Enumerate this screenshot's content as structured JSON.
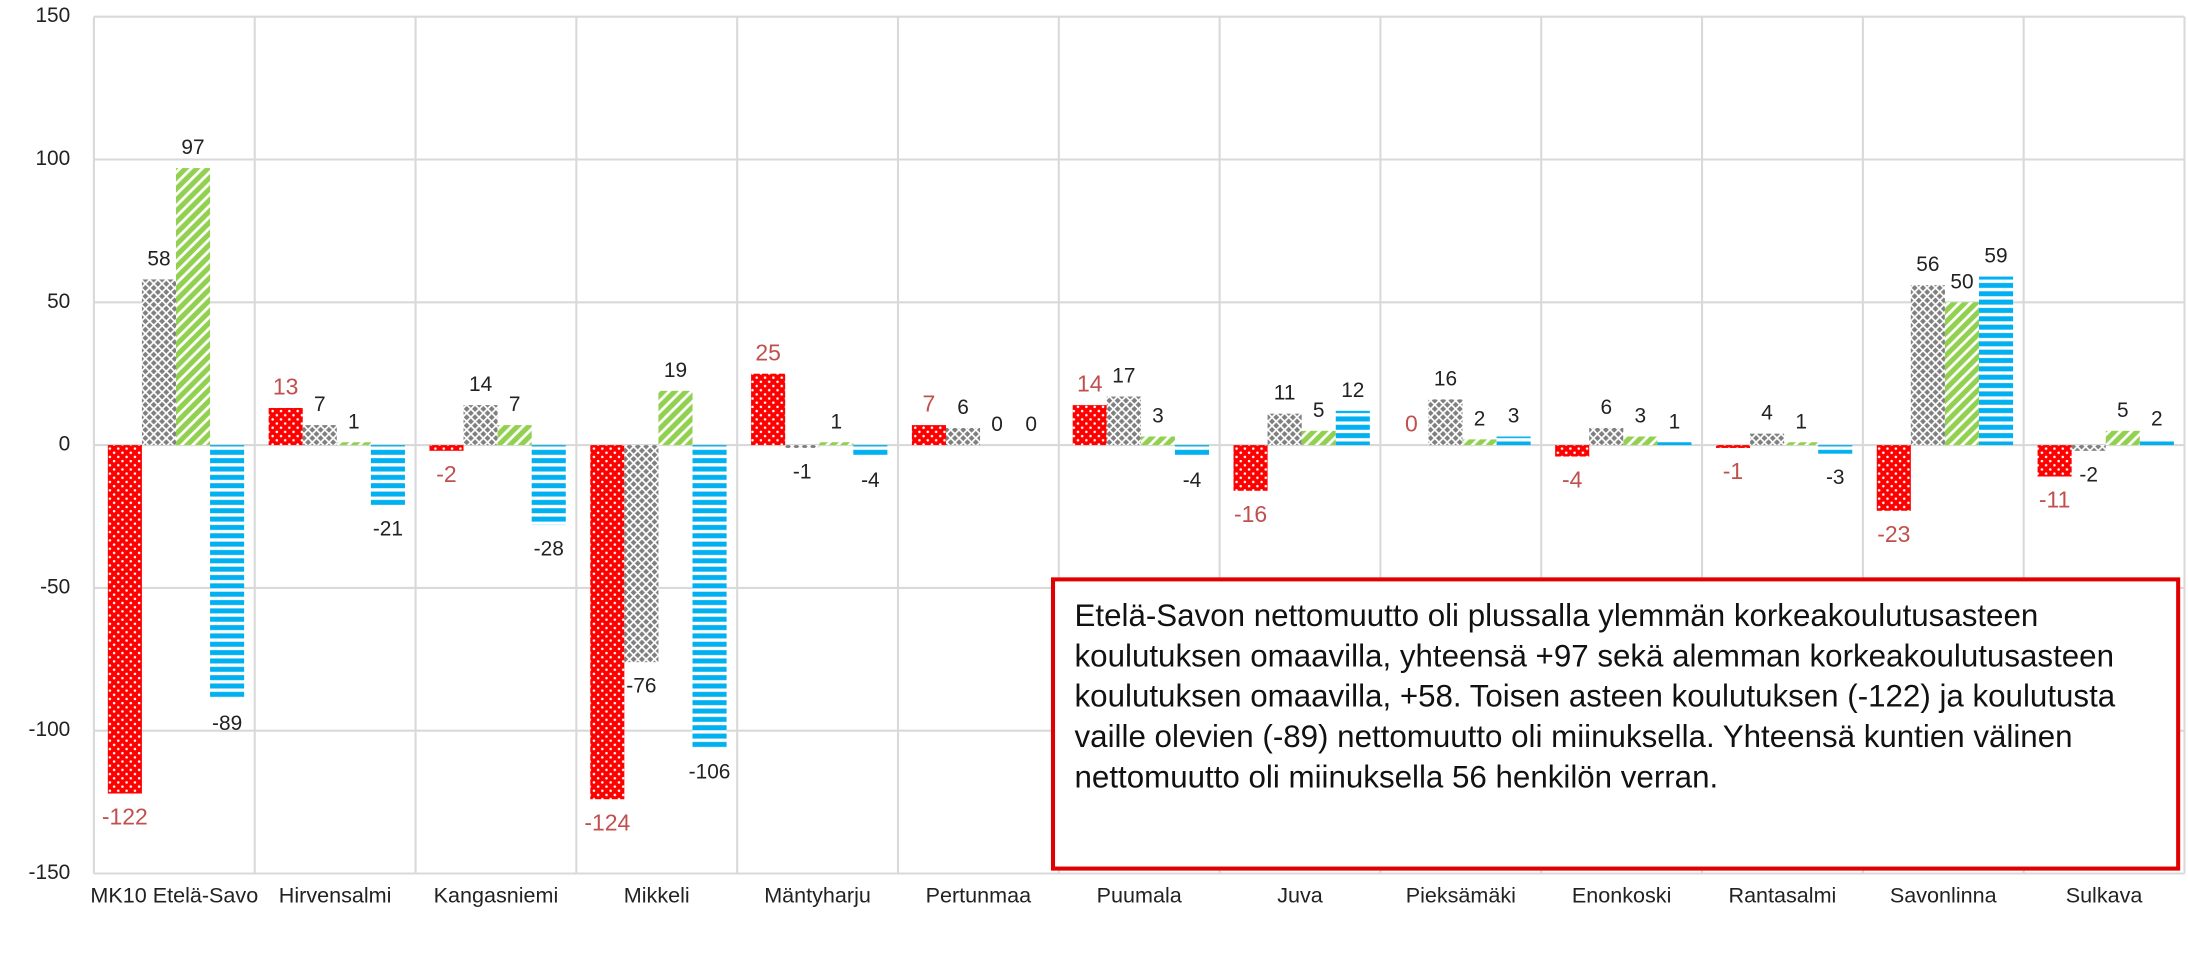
{
  "chart_data": {
    "type": "bar",
    "categories": [
      "MK10 Etelä-Savo",
      "Hirvensalmi",
      "Kangasniemi",
      "Mikkeli",
      "Mäntyharju",
      "Pertunmaa",
      "Puumala",
      "Juva",
      "Pieksämäki",
      "Enonkoski",
      "Rantasalmi",
      "Savonlinna",
      "Sulkava"
    ],
    "series": [
      {
        "color": "#ff0000",
        "pattern": "dots",
        "label_color": "#c0504d",
        "values": [
          -122,
          13,
          -2,
          -124,
          25,
          7,
          14,
          -16,
          0,
          -4,
          -1,
          -23,
          -11
        ]
      },
      {
        "color": "#7f7f7f",
        "pattern": "crosshatch",
        "label_color": "#222222",
        "values": [
          58,
          7,
          14,
          -76,
          -1,
          6,
          17,
          11,
          16,
          6,
          4,
          56,
          -2
        ]
      },
      {
        "color": "#92d050",
        "pattern": "diagonal",
        "label_color": "#222222",
        "values": [
          97,
          1,
          7,
          19,
          1,
          0,
          3,
          5,
          2,
          3,
          1,
          50,
          5
        ]
      },
      {
        "color": "#00b0f0",
        "pattern": "horizontal",
        "label_color": "#222222",
        "values": [
          -89,
          -21,
          -28,
          -106,
          -4,
          0,
          -4,
          12,
          3,
          1,
          -3,
          59,
          2
        ]
      }
    ],
    "ylim": [
      -150,
      150
    ],
    "yticks": [
      -150,
      -100,
      -50,
      0,
      50,
      100,
      150
    ],
    "grid": true,
    "annotation": "Etelä-Savon nettomuutto oli plussalla ylemmän korkeakoulutusasteen koulutuksen omaavilla, yhteensä +97 sekä alemman korkeakoulutusasteen koulutuksen omaavilla, +58. Toisen asteen koulutuksen (-122) ja koulutusta vaille olevien (-89) nettomuutto oli miinuksella. Yhteensä kuntien välinen nettomuutto oli miinuksella 56 henkilön verran."
  }
}
